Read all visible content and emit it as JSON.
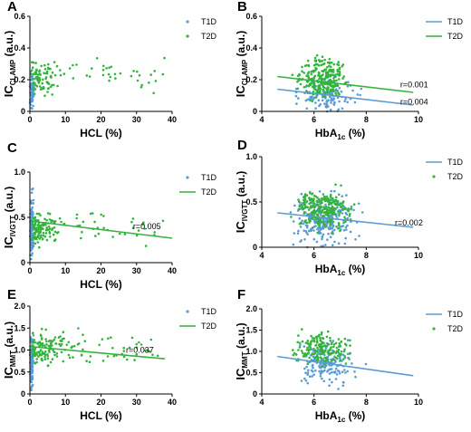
{
  "colors": {
    "t1d": "#5b9bd5",
    "t2d": "#32b43c"
  },
  "chart_data": [
    {
      "panel": "A",
      "type": "scatter",
      "ylabel_main": "IC",
      "ylabel_sub": "CLAMP",
      "ylabel_unit": " (a.u.)",
      "xlabel": "HCL (%)",
      "xlim": [
        0,
        40
      ],
      "ylim": [
        0,
        0.6
      ],
      "xticks": [
        "0",
        "10",
        "20",
        "30",
        "40"
      ],
      "yticks": [
        "0",
        "0.2",
        "0.4",
        "0.6"
      ],
      "legend": {
        "position": "right",
        "entries": [
          {
            "name": "T1D",
            "style": "marker"
          },
          {
            "name": "T2D",
            "style": "marker"
          }
        ]
      },
      "series": [
        {
          "name": "T1D",
          "x_range": [
            0,
            3
          ],
          "y_range": [
            0,
            0.3
          ]
        },
        {
          "name": "T2D",
          "x_range": [
            0,
            38
          ],
          "y_range": [
            0.05,
            0.4
          ]
        }
      ],
      "annotations": []
    },
    {
      "panel": "B",
      "type": "scatter",
      "ylabel_main": "IC",
      "ylabel_sub": "CLAMP",
      "ylabel_unit": " (a.u.)",
      "xlabel_main": "HbA",
      "xlabel_sub": "1c",
      "xlabel_unit": " (%)",
      "xlim": [
        4,
        10
      ],
      "ylim": [
        0,
        0.6
      ],
      "xticks": [
        "4",
        "6",
        "8",
        "10"
      ],
      "yticks": [
        "0",
        "0.2",
        "0.4",
        "0.6"
      ],
      "legend": {
        "position": "right",
        "entries": [
          {
            "name": "T1D",
            "style": "line"
          },
          {
            "name": "T2D",
            "style": "line"
          }
        ]
      },
      "series": [
        {
          "name": "T1D",
          "x_range": [
            5,
            9.8
          ],
          "y_range": [
            0,
            0.3
          ],
          "trend": [
            [
              4.6,
              0.14
            ],
            [
              9.8,
              0.04
            ]
          ]
        },
        {
          "name": "T2D",
          "x_range": [
            4.8,
            9.8
          ],
          "y_range": [
            0.05,
            0.6
          ],
          "trend": [
            [
              4.6,
              0.22
            ],
            [
              9.8,
              0.12
            ]
          ]
        }
      ],
      "annotations": [
        {
          "text": "r=0.001",
          "x": 9.3,
          "y": 0.17
        },
        {
          "text": "r=0.004",
          "x": 9.3,
          "y": 0.06
        }
      ]
    },
    {
      "panel": "C",
      "type": "scatter",
      "ylabel_main": "IC",
      "ylabel_sub": "IVGTT",
      "ylabel_unit": " (a.u.)",
      "xlabel": "HCL (%)",
      "xlim": [
        0,
        40
      ],
      "ylim": [
        0,
        1.0
      ],
      "xticks": [
        "0",
        "10",
        "20",
        "30",
        "40"
      ],
      "yticks": [
        "0",
        "0.5",
        "1.0"
      ],
      "legend": {
        "position": "right",
        "entries": [
          {
            "name": "T1D",
            "style": "marker"
          },
          {
            "name": "T2D",
            "style": "line"
          }
        ]
      },
      "series": [
        {
          "name": "T1D",
          "x_range": [
            0,
            3
          ],
          "y_range": [
            0,
            0.95
          ]
        },
        {
          "name": "T2D",
          "x_range": [
            0,
            38
          ],
          "y_range": [
            0.1,
            0.75
          ],
          "trend": [
            [
              0,
              0.46
            ],
            [
              40,
              0.27
            ]
          ]
        }
      ],
      "annotations": [
        {
          "text": "r=0.005",
          "x": 29,
          "y": 0.4
        }
      ]
    },
    {
      "panel": "D",
      "type": "scatter",
      "ylabel_main": "IC",
      "ylabel_sub": "IVGTT",
      "ylabel_unit": " (a.u.)",
      "xlabel_main": "HbA",
      "xlabel_sub": "1c",
      "xlabel_unit": " (%)",
      "xlim": [
        4,
        10
      ],
      "ylim": [
        0,
        1.0
      ],
      "xticks": [
        "4",
        "6",
        "8",
        "10"
      ],
      "yticks": [
        "0",
        "0.5",
        "1.0"
      ],
      "legend": {
        "position": "right",
        "entries": [
          {
            "name": "T1D",
            "style": "line"
          },
          {
            "name": "T2D",
            "style": "marker"
          }
        ]
      },
      "series": [
        {
          "name": "T1D",
          "x_range": [
            4.8,
            9.8
          ],
          "y_range": [
            0,
            1.0
          ],
          "trend": [
            [
              4.6,
              0.38
            ],
            [
              9.8,
              0.22
            ]
          ]
        },
        {
          "name": "T2D",
          "x_range": [
            5,
            9.5
          ],
          "y_range": [
            0.1,
            0.8
          ]
        }
      ],
      "annotations": [
        {
          "text": "r=0.002",
          "x": 9.1,
          "y": 0.27
        }
      ]
    },
    {
      "panel": "E",
      "type": "scatter",
      "ylabel_main": "IC",
      "ylabel_sub": "MMT",
      "ylabel_unit": " (a.u.)",
      "xlabel": "HCL (%)",
      "xlim": [
        0,
        40
      ],
      "ylim": [
        0,
        2.0
      ],
      "xticks": [
        "0",
        "10",
        "20",
        "30",
        "40"
      ],
      "yticks": [
        "0",
        "0.5",
        "1.0",
        "1.5",
        "2.0"
      ],
      "legend": {
        "position": "right",
        "entries": [
          {
            "name": "T1D",
            "style": "marker"
          },
          {
            "name": "T2D",
            "style": "line"
          }
        ]
      },
      "series": [
        {
          "name": "T1D",
          "x_range": [
            0,
            3
          ],
          "y_range": [
            0,
            1.95
          ]
        },
        {
          "name": "T2D",
          "x_range": [
            0,
            36
          ],
          "y_range": [
            0.5,
            1.8
          ],
          "trend": [
            [
              0,
              1.08
            ],
            [
              38,
              0.8
            ]
          ]
        }
      ],
      "annotations": [
        {
          "text": "r=0.037",
          "x": 27,
          "y": 1.0
        }
      ]
    },
    {
      "panel": "F",
      "type": "scatter",
      "ylabel_main": "IC",
      "ylabel_sub": "MMT",
      "ylabel_unit": " (a.u.)",
      "xlabel_main": "HbA",
      "xlabel_sub": "1c",
      "xlabel_unit": " (%)",
      "xlim": [
        4,
        10
      ],
      "ylim": [
        0,
        2.0
      ],
      "xticks": [
        "4",
        "6",
        "8",
        "10"
      ],
      "yticks": [
        "0",
        "0.5",
        "1.0",
        "1.5",
        "2.0"
      ],
      "legend": {
        "position": "right",
        "entries": [
          {
            "name": "T1D",
            "style": "line"
          },
          {
            "name": "T2D",
            "style": "marker"
          }
        ]
      },
      "series": [
        {
          "name": "T1D",
          "x_range": [
            5,
            9.8
          ],
          "y_range": [
            0.1,
            1.9
          ],
          "trend": [
            [
              4.6,
              0.88
            ],
            [
              9.8,
              0.43
            ]
          ]
        },
        {
          "name": "T2D",
          "x_range": [
            5,
            9.5
          ],
          "y_range": [
            0.5,
            1.7
          ]
        }
      ],
      "annotations": []
    }
  ]
}
